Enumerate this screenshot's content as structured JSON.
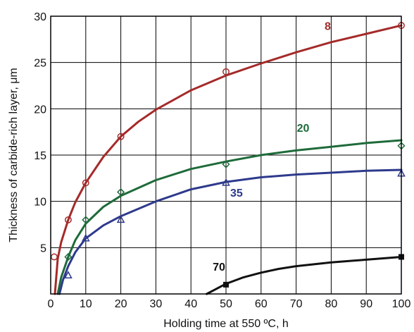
{
  "chart_data": {
    "type": "scatter",
    "title": "",
    "xlabel": "Holding time at 550  ºC, h",
    "ylabel": "Thickness of carbide-rich layer,  μm",
    "xlim": [
      0,
      100
    ],
    "ylim": [
      0,
      30
    ],
    "x_ticks": [
      "0",
      "10",
      "20",
      "30",
      "40",
      "50",
      "60",
      "70",
      "80",
      "90",
      "100"
    ],
    "y_ticks": [
      "5",
      "10",
      "15",
      "20",
      "25",
      "30"
    ],
    "grid": true,
    "legend": "none",
    "series": [
      {
        "name": "8",
        "color": "#a52a2a",
        "marker": "circle",
        "points": [
          [
            1,
            4
          ],
          [
            5,
            8
          ],
          [
            10,
            12
          ],
          [
            20,
            17
          ],
          [
            50,
            24
          ],
          [
            100,
            29
          ]
        ],
        "curve": [
          [
            1.2,
            0
          ],
          [
            2,
            3.8
          ],
          [
            3,
            5.6
          ],
          [
            5,
            8
          ],
          [
            7,
            9.9
          ],
          [
            10,
            12
          ],
          [
            15,
            14.8
          ],
          [
            20,
            17
          ],
          [
            25,
            18.6
          ],
          [
            30,
            19.9
          ],
          [
            40,
            22
          ],
          [
            50,
            23.6
          ],
          [
            60,
            24.9
          ],
          [
            70,
            26.1
          ],
          [
            80,
            27.2
          ],
          [
            90,
            28.1
          ],
          [
            100,
            29
          ]
        ]
      },
      {
        "name": "20",
        "color": "#1e6b3a",
        "marker": "diamond",
        "points": [
          [
            5,
            4
          ],
          [
            10,
            8
          ],
          [
            20,
            11
          ],
          [
            50,
            14
          ],
          [
            100,
            16
          ]
        ],
        "curve": [
          [
            2,
            0
          ],
          [
            3,
            1.8
          ],
          [
            5,
            4
          ],
          [
            7,
            5.8
          ],
          [
            10,
            7.6
          ],
          [
            15,
            9.4
          ],
          [
            20,
            10.6
          ],
          [
            30,
            12.3
          ],
          [
            40,
            13.5
          ],
          [
            50,
            14.3
          ],
          [
            60,
            15
          ],
          [
            70,
            15.5
          ],
          [
            80,
            15.9
          ],
          [
            90,
            16.3
          ],
          [
            100,
            16.6
          ]
        ]
      },
      {
        "name": "35",
        "color": "#2e3a8c",
        "marker": "triangle",
        "points": [
          [
            5,
            2
          ],
          [
            10,
            6
          ],
          [
            20,
            8
          ],
          [
            50,
            12
          ],
          [
            100,
            13
          ]
        ],
        "curve": [
          [
            2.5,
            0
          ],
          [
            3.5,
            1.5
          ],
          [
            5,
            3
          ],
          [
            7,
            4.5
          ],
          [
            10,
            6
          ],
          [
            15,
            7.4
          ],
          [
            20,
            8.4
          ],
          [
            30,
            10
          ],
          [
            40,
            11.3
          ],
          [
            50,
            12.1
          ],
          [
            60,
            12.6
          ],
          [
            70,
            12.9
          ],
          [
            80,
            13.1
          ],
          [
            90,
            13.3
          ],
          [
            100,
            13.4
          ]
        ]
      },
      {
        "name": "70",
        "color": "#111111",
        "marker": "square",
        "points": [
          [
            50,
            1
          ],
          [
            100,
            4
          ]
        ],
        "curve": [
          [
            44.5,
            0
          ],
          [
            47,
            0.5
          ],
          [
            50,
            1.1
          ],
          [
            55,
            1.8
          ],
          [
            60,
            2.3
          ],
          [
            65,
            2.7
          ],
          [
            70,
            3
          ],
          [
            80,
            3.4
          ],
          [
            90,
            3.7
          ],
          [
            100,
            4
          ]
        ]
      }
    ],
    "series_label_positions": [
      {
        "series": "8",
        "x": 79,
        "y": 28.5
      },
      {
        "series": "20",
        "x": 72,
        "y": 17.5
      },
      {
        "series": "35",
        "x": 53,
        "y": 10.5
      },
      {
        "series": "70",
        "x": 48,
        "y": 2.5
      }
    ]
  }
}
